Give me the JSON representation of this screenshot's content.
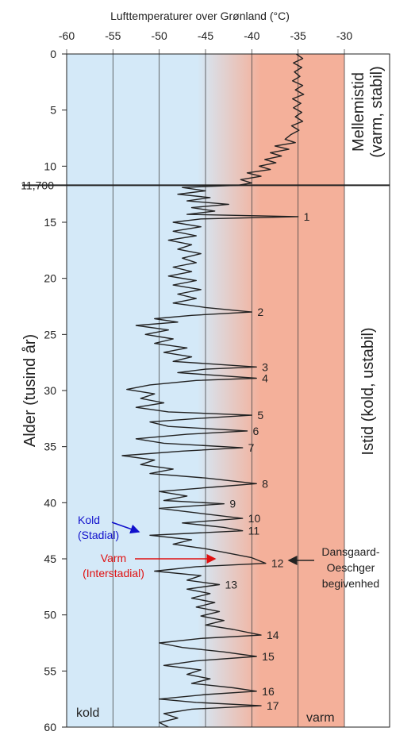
{
  "chart_data": {
    "type": "line",
    "title": "Lufttemperaturer over Grønland (°C)",
    "ylabel": "Alder (tusind år)",
    "xlim": [
      -60,
      -30
    ],
    "ylim": [
      0,
      60
    ],
    "x_ticks": [
      -60,
      -55,
      -50,
      -45,
      -40,
      -35,
      -30
    ],
    "y_ticks": [
      0,
      5,
      10,
      15,
      20,
      25,
      30,
      35,
      40,
      45,
      50,
      55,
      60
    ],
    "boundary": {
      "age": 11.7,
      "label": "11,700"
    },
    "regions": {
      "interglacial": {
        "line1": "Mellemistid",
        "line2": "(varm, stabil)",
        "from": 0,
        "to": 11.7
      },
      "glacial": {
        "label": "Istid (kold, ustabil)",
        "from": 11.7,
        "to": 60
      }
    },
    "corner_labels": {
      "cold": "kold",
      "warm": "varm"
    },
    "colors": {
      "cold": "#d4e9f8",
      "warm": "#f4b09a",
      "line": "#222222",
      "stadial_annotation": "#1010cc",
      "interstadial_annotation": "#e01010"
    },
    "annotations": {
      "stadial": {
        "line1": "Kold",
        "line2": "(Stadial)"
      },
      "interstadial": {
        "line1": "Varm",
        "line2": "(Interstadial)"
      },
      "do_event": {
        "line1": "Dansgaard-",
        "line2": "Oeschger",
        "line3": "begivenhed"
      }
    },
    "events": [
      {
        "n": "1",
        "age": 14.5,
        "temp": -35
      },
      {
        "n": "2",
        "age": 23.0,
        "temp": -40
      },
      {
        "n": "3",
        "age": 27.9,
        "temp": -39.5
      },
      {
        "n": "4",
        "age": 28.9,
        "temp": -39.5
      },
      {
        "n": "5",
        "age": 32.2,
        "temp": -40
      },
      {
        "n": "6",
        "age": 33.6,
        "temp": -40.5
      },
      {
        "n": "7",
        "age": 35.1,
        "temp": -41
      },
      {
        "n": "8",
        "age": 38.3,
        "temp": -39.5
      },
      {
        "n": "9",
        "age": 40.1,
        "temp": -43
      },
      {
        "n": "10",
        "age": 41.4,
        "temp": -41
      },
      {
        "n": "11",
        "age": 42.5,
        "temp": -41
      },
      {
        "n": "12",
        "age": 45.4,
        "temp": -38.5
      },
      {
        "n": "13",
        "age": 47.3,
        "temp": -43.5
      },
      {
        "n": "14",
        "age": 51.8,
        "temp": -39
      },
      {
        "n": "15",
        "age": 53.7,
        "temp": -39.5
      },
      {
        "n": "16",
        "age": 56.8,
        "temp": -39.5
      },
      {
        "n": "17",
        "age": 58.1,
        "temp": -39
      }
    ],
    "series": [
      {
        "points": [
          [
            0,
            -35.2
          ],
          [
            0.4,
            -34.5
          ],
          [
            0.8,
            -35.5
          ],
          [
            1.2,
            -34.6
          ],
          [
            1.6,
            -35.4
          ],
          [
            2.0,
            -34.8
          ],
          [
            2.4,
            -35.6
          ],
          [
            2.8,
            -34.5
          ],
          [
            3.2,
            -35.3
          ],
          [
            3.6,
            -34.4
          ],
          [
            4.0,
            -35.6
          ],
          [
            4.4,
            -34.7
          ],
          [
            4.8,
            -35.5
          ],
          [
            5.2,
            -34.6
          ],
          [
            5.6,
            -35.3
          ],
          [
            6.0,
            -34.5
          ],
          [
            6.4,
            -35.7
          ],
          [
            6.8,
            -34.9
          ],
          [
            7.2,
            -35.8
          ],
          [
            7.6,
            -36.4
          ],
          [
            7.9,
            -35.3
          ],
          [
            8.2,
            -37.5
          ],
          [
            8.5,
            -36.0
          ],
          [
            8.8,
            -38.0
          ],
          [
            9.1,
            -36.8
          ],
          [
            9.4,
            -38.6
          ],
          [
            9.7,
            -37.4
          ],
          [
            10.0,
            -39.2
          ],
          [
            10.3,
            -38.0
          ],
          [
            10.6,
            -40.5
          ],
          [
            10.9,
            -39.0
          ],
          [
            11.2,
            -41.2
          ],
          [
            11.5,
            -40.0
          ],
          [
            11.7,
            -41.5
          ],
          [
            11.9,
            -47.5
          ],
          [
            12.2,
            -45.0
          ],
          [
            12.5,
            -48.0
          ],
          [
            12.8,
            -44.5
          ],
          [
            13.1,
            -47.0
          ],
          [
            13.4,
            -42.5
          ],
          [
            13.7,
            -46.5
          ],
          [
            14.0,
            -44.0
          ],
          [
            14.3,
            -47.0
          ],
          [
            14.5,
            -35.0
          ],
          [
            14.7,
            -45.5
          ],
          [
            15.0,
            -48.5
          ],
          [
            15.4,
            -45.5
          ],
          [
            15.8,
            -48.5
          ],
          [
            16.2,
            -46.0
          ],
          [
            16.6,
            -49.0
          ],
          [
            17.0,
            -46.5
          ],
          [
            17.4,
            -48.0
          ],
          [
            17.8,
            -45.5
          ],
          [
            18.2,
            -47.5
          ],
          [
            18.6,
            -46.0
          ],
          [
            19.0,
            -48.5
          ],
          [
            19.4,
            -46.5
          ],
          [
            19.8,
            -49.0
          ],
          [
            20.2,
            -46.0
          ],
          [
            20.6,
            -48.5
          ],
          [
            21.0,
            -45.5
          ],
          [
            21.4,
            -48.0
          ],
          [
            21.8,
            -46.0
          ],
          [
            22.2,
            -48.5
          ],
          [
            22.6,
            -45.0
          ],
          [
            23.0,
            -40.0
          ],
          [
            23.3,
            -46.5
          ],
          [
            23.6,
            -50.5
          ],
          [
            23.9,
            -48.0
          ],
          [
            24.2,
            -52.5
          ],
          [
            24.6,
            -49.0
          ],
          [
            25.0,
            -51.5
          ],
          [
            25.4,
            -48.5
          ],
          [
            25.8,
            -50.5
          ],
          [
            26.2,
            -47.0
          ],
          [
            26.6,
            -49.5
          ],
          [
            27.0,
            -46.5
          ],
          [
            27.4,
            -48.5
          ],
          [
            27.9,
            -39.5
          ],
          [
            28.1,
            -45.0
          ],
          [
            28.4,
            -48.0
          ],
          [
            28.9,
            -39.5
          ],
          [
            29.1,
            -46.0
          ],
          [
            29.5,
            -51.0
          ],
          [
            29.9,
            -53.5
          ],
          [
            30.3,
            -50.5
          ],
          [
            30.7,
            -52.0
          ],
          [
            31.1,
            -49.5
          ],
          [
            31.5,
            -52.5
          ],
          [
            31.9,
            -49.0
          ],
          [
            32.2,
            -40.0
          ],
          [
            32.5,
            -46.0
          ],
          [
            32.8,
            -51.0
          ],
          [
            33.2,
            -49.0
          ],
          [
            33.6,
            -40.5
          ],
          [
            33.9,
            -47.0
          ],
          [
            34.3,
            -52.5
          ],
          [
            34.7,
            -49.5
          ],
          [
            35.1,
            -41.0
          ],
          [
            35.4,
            -47.5
          ],
          [
            35.8,
            -54.0
          ],
          [
            36.2,
            -50.5
          ],
          [
            36.6,
            -52.0
          ],
          [
            37.0,
            -48.5
          ],
          [
            37.4,
            -51.0
          ],
          [
            37.8,
            -45.0
          ],
          [
            38.3,
            -39.5
          ],
          [
            38.6,
            -44.0
          ],
          [
            39.0,
            -50.0
          ],
          [
            39.4,
            -47.0
          ],
          [
            39.8,
            -49.5
          ],
          [
            40.1,
            -43.0
          ],
          [
            40.5,
            -50.0
          ],
          [
            40.9,
            -46.0
          ],
          [
            41.4,
            -41.0
          ],
          [
            41.8,
            -47.5
          ],
          [
            42.2,
            -43.0
          ],
          [
            42.5,
            -41.0
          ],
          [
            42.9,
            -51.0
          ],
          [
            43.3,
            -46.5
          ],
          [
            43.7,
            -48.5
          ],
          [
            44.1,
            -45.0
          ],
          [
            44.5,
            -42.5
          ],
          [
            44.9,
            -40.0
          ],
          [
            45.4,
            -38.5
          ],
          [
            45.7,
            -46.0
          ],
          [
            46.1,
            -50.5
          ],
          [
            46.5,
            -45.5
          ],
          [
            46.9,
            -47.0
          ],
          [
            47.3,
            -43.5
          ],
          [
            47.7,
            -47.0
          ],
          [
            48.1,
            -44.5
          ],
          [
            48.5,
            -46.5
          ],
          [
            48.9,
            -44.0
          ],
          [
            49.3,
            -46.0
          ],
          [
            49.7,
            -43.5
          ],
          [
            50.1,
            -45.5
          ],
          [
            50.5,
            -43.0
          ],
          [
            50.9,
            -45.0
          ],
          [
            51.3,
            -42.0
          ],
          [
            51.8,
            -39.0
          ],
          [
            52.1,
            -45.5
          ],
          [
            52.5,
            -50.0
          ],
          [
            52.9,
            -47.5
          ],
          [
            53.3,
            -43.0
          ],
          [
            53.7,
            -39.5
          ],
          [
            54.1,
            -46.0
          ],
          [
            54.5,
            -49.5
          ],
          [
            54.9,
            -45.5
          ],
          [
            55.3,
            -47.0
          ],
          [
            55.7,
            -44.5
          ],
          [
            56.1,
            -46.5
          ],
          [
            56.5,
            -42.0
          ],
          [
            56.8,
            -39.5
          ],
          [
            57.1,
            -45.0
          ],
          [
            57.5,
            -50.0
          ],
          [
            57.8,
            -46.0
          ],
          [
            58.1,
            -39.0
          ],
          [
            58.4,
            -46.5
          ],
          [
            58.8,
            -49.5
          ],
          [
            59.2,
            -48.0
          ],
          [
            59.6,
            -50.0
          ],
          [
            60.0,
            -49.0
          ]
        ]
      }
    ]
  }
}
